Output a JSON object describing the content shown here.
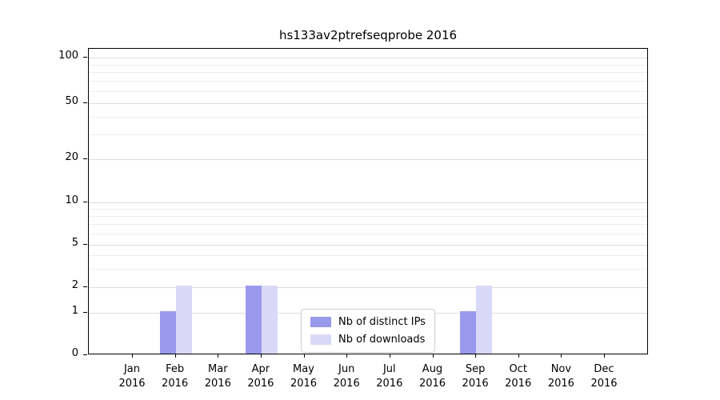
{
  "chart_data": {
    "type": "bar",
    "title": "hs133av2ptrefseqprobe 2016",
    "categories": [
      "Jan\n2016",
      "Feb\n2016",
      "Mar\n2016",
      "Apr\n2016",
      "May\n2016",
      "Jun\n2016",
      "Jul\n2016",
      "Aug\n2016",
      "Sep\n2016",
      "Oct\n2016",
      "Nov\n2016",
      "Dec\n2016"
    ],
    "series": [
      {
        "name": "Nb of distinct IPs",
        "color": "#9999ee",
        "values": [
          0,
          1,
          0,
          2,
          0,
          0,
          0,
          0,
          1,
          0,
          0,
          0
        ]
      },
      {
        "name": "Nb of downloads",
        "color": "#d9d9f7",
        "values": [
          0,
          2,
          0,
          2,
          0,
          0,
          0,
          0,
          2,
          0,
          0,
          0
        ]
      }
    ],
    "y_axis": {
      "scale": "symlog",
      "major_ticks": [
        0,
        1,
        2,
        5,
        10,
        20,
        50,
        100
      ],
      "minor_ticks": [
        3,
        4,
        6,
        7,
        8,
        9,
        30,
        40,
        60,
        70,
        80,
        90
      ],
      "tick_fracs": {
        "0": 1.0,
        "1": 0.8616,
        "2": 0.7781,
        "5": 0.6397,
        "10": 0.5013,
        "20": 0.3603,
        "50": 0.1775,
        "100": 0.0287
      }
    },
    "x_axis": {
      "label_year": "2016"
    },
    "legend": {
      "position": "lower center"
    },
    "grid": "on"
  }
}
